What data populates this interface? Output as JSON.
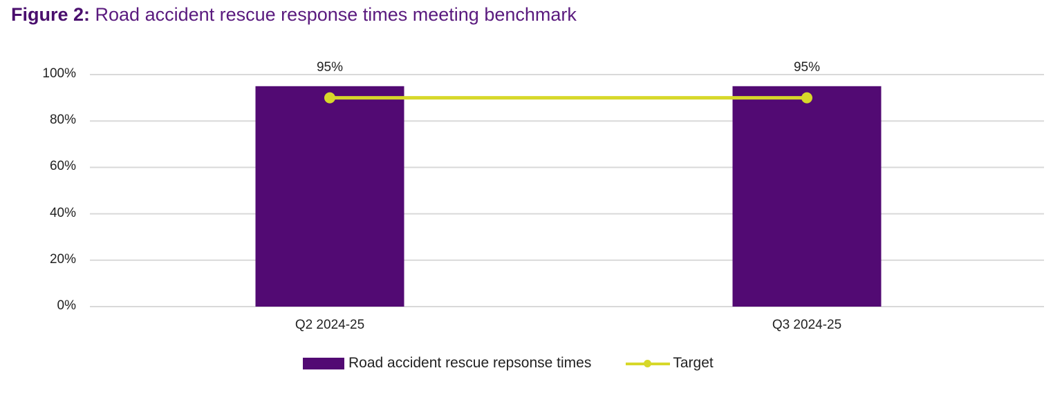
{
  "figure": {
    "label": "Figure 2:",
    "title": "Road accident rescue response times meeting benchmark"
  },
  "colors": {
    "bar": "#520A73",
    "target": "#D7D82A",
    "grid": "#D9D9D9",
    "title": "#5A1A7E"
  },
  "axes": {
    "y_ticks": [
      "0%",
      "20%",
      "40%",
      "60%",
      "80%",
      "100%"
    ],
    "x_ticks": [
      "Q2 2024-25",
      "Q3 2024-25"
    ]
  },
  "data_labels": [
    "95%",
    "95%"
  ],
  "legend": {
    "bar_label": "Road accident rescue repsonse times",
    "line_label": "Target"
  },
  "chart_data": {
    "type": "bar",
    "title": "Figure 2: Road accident rescue response times meeting benchmark",
    "categories": [
      "Q2 2024-25",
      "Q3 2024-25"
    ],
    "series": [
      {
        "name": "Road accident rescue repsonse times",
        "type": "bar",
        "values": [
          95,
          95
        ],
        "color": "#520A73",
        "data_labels": [
          "95%",
          "95%"
        ]
      },
      {
        "name": "Target",
        "type": "line",
        "values": [
          90,
          90
        ],
        "color": "#D7D82A",
        "marker": "circle"
      }
    ],
    "xlabel": "",
    "ylabel": "",
    "ylim": [
      0,
      100
    ],
    "y_tick_format": "percent",
    "y_ticks": [
      0,
      20,
      40,
      60,
      80,
      100
    ],
    "grid": "horizontal",
    "legend_position": "bottom"
  }
}
